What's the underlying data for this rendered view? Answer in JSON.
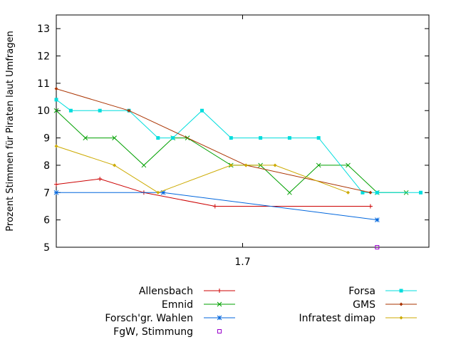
{
  "chart_data": {
    "type": "line",
    "title": "",
    "xlabel": "",
    "ylabel": "Prozent Stimmen für Piraten laut Umfragen",
    "xlim": [
      1.65,
      1.75
    ],
    "ylim": [
      5,
      13.5
    ],
    "xticks": [
      1.7
    ],
    "xtick_labels": [
      "1.7"
    ],
    "yticks": [
      5,
      6,
      7,
      8,
      9,
      10,
      11,
      12,
      13
    ],
    "grid": false,
    "legend_position": "bottom",
    "series": [
      {
        "name": "Allensbach",
        "color": "#cc0000",
        "marker": "plus",
        "x": [
          1.65,
          1.6617,
          1.6735,
          1.6926,
          1.7343
        ],
        "y": [
          7.3,
          7.5,
          7.0,
          6.5,
          6.5
        ]
      },
      {
        "name": "Emnid",
        "color": "#00a000",
        "marker": "x",
        "x": [
          1.65,
          1.6578,
          1.6656,
          1.6735,
          1.6813,
          1.6852,
          1.6969,
          1.7048,
          1.7126,
          1.7204,
          1.7283,
          1.7361,
          1.7439
        ],
        "y": [
          10,
          9,
          9,
          8,
          9,
          9,
          8,
          8,
          7,
          8,
          8,
          7,
          7
        ]
      },
      {
        "name": "Forsch'gr. Wahlen",
        "color": "#0066dd",
        "marker": "star",
        "x": [
          1.65,
          1.6787,
          1.7361
        ],
        "y": [
          7,
          7,
          6
        ]
      },
      {
        "name": "FgW, Stimmung",
        "color": "#9900cc",
        "marker": "box",
        "x": [
          1.7361
        ],
        "y": [
          5
        ]
      },
      {
        "name": "Forsa",
        "color": "#00dddd",
        "marker": "filled-box",
        "x": [
          1.65,
          1.6539,
          1.6617,
          1.6695,
          1.6773,
          1.6813,
          1.6891,
          1.6969,
          1.7048,
          1.7126,
          1.7204,
          1.7322,
          1.7361,
          1.7478
        ],
        "y": [
          10.4,
          10,
          10,
          10,
          9,
          9,
          10,
          9,
          9,
          9,
          9,
          7,
          7,
          7
        ]
      },
      {
        "name": "GMS",
        "color": "#aa3300",
        "marker": "diamond",
        "x": [
          1.65,
          1.6695,
          1.7009,
          1.7343
        ],
        "y": [
          10.8,
          10,
          8,
          7
        ]
      },
      {
        "name": "Infratest dimap",
        "color": "#ccaa00",
        "marker": "diamond",
        "x": [
          1.65,
          1.6656,
          1.6773,
          1.6969,
          1.7009,
          1.7087,
          1.7283
        ],
        "y": [
          8.7,
          8,
          7,
          8,
          8,
          8,
          7
        ]
      }
    ]
  }
}
